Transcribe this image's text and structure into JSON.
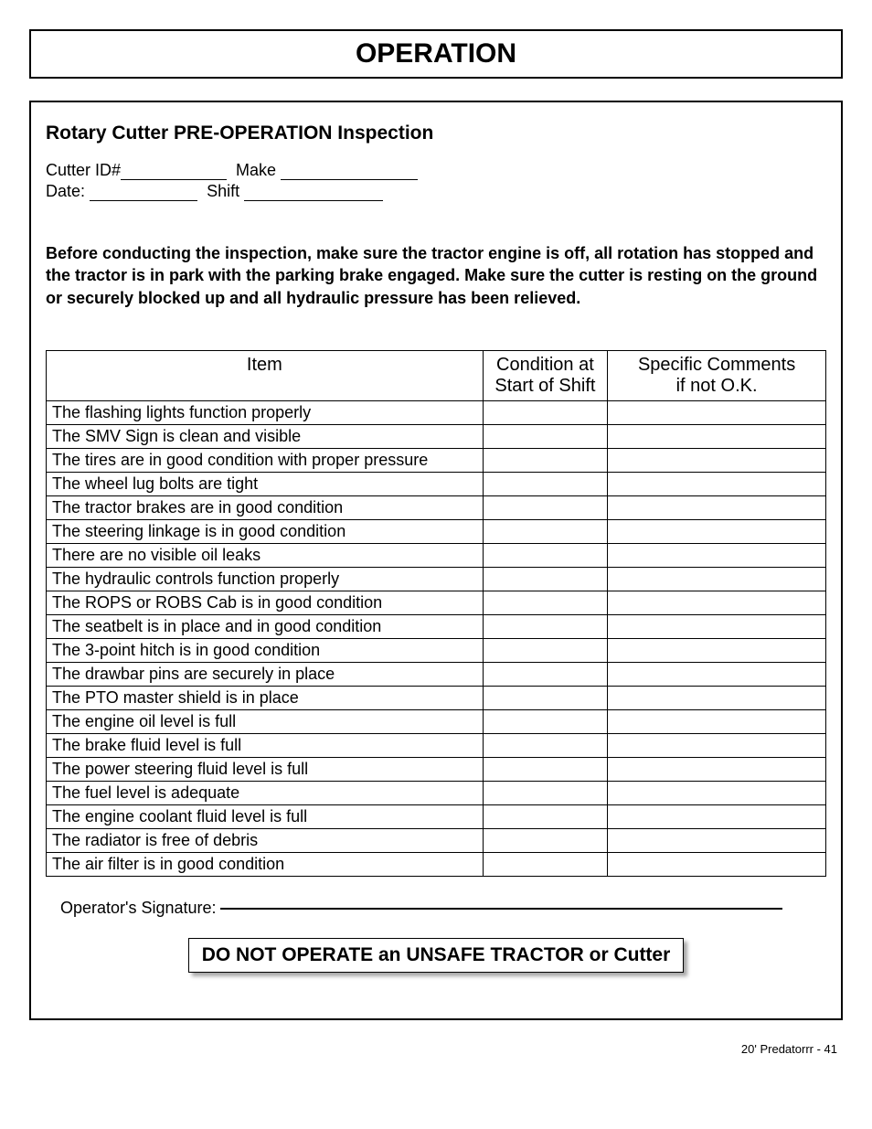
{
  "header": {
    "title": "OPERATION"
  },
  "section_title": "Rotary Cutter PRE-OPERATION Inspection",
  "meta": {
    "cutter_id_label": "Cutter ID#",
    "make_label": "Make",
    "date_label": "Date:",
    "shift_label": "Shift",
    "blank_widths": {
      "cutter_id": 116,
      "make": 150,
      "date": 118,
      "shift": 152
    }
  },
  "warning": "Before conducting the inspection, make sure the tractor engine is off, all rotation has stopped and the tractor is in park with the parking brake engaged. Make sure the cutter is resting on the ground or securely blocked up and all hydraulic pressure has been relieved.",
  "table": {
    "columns": [
      "Item",
      "Condition at Start of Shift",
      "Specific Comments if not O.K."
    ],
    "rows": [
      "The flashing lights function properly",
      "The SMV Sign is clean and visible",
      "The tires are in good condition with proper pressure",
      "The wheel lug bolts are tight",
      "The tractor brakes are in good condition",
      "The steering linkage is in good condition",
      "There are no visible oil leaks",
      "The hydraulic controls function properly",
      "The ROPS or ROBS Cab is in good condition",
      "The seatbelt is in place and in good condition",
      "The 3-point hitch is in good condition",
      "The drawbar pins are securely in place",
      "The PTO master shield is in place",
      "The engine oil level is full",
      "The brake fluid level is full",
      "The power steering fluid level is full",
      "The fuel level is adequate",
      "The engine coolant fluid level is full",
      "The radiator is free of debris",
      "The air filter is in good condition"
    ]
  },
  "signature_label": "Operator's Signature:",
  "do_not": "DO NOT OPERATE an UNSAFE TRACTOR or Cutter",
  "footer": "20' Predatorrr - 41"
}
